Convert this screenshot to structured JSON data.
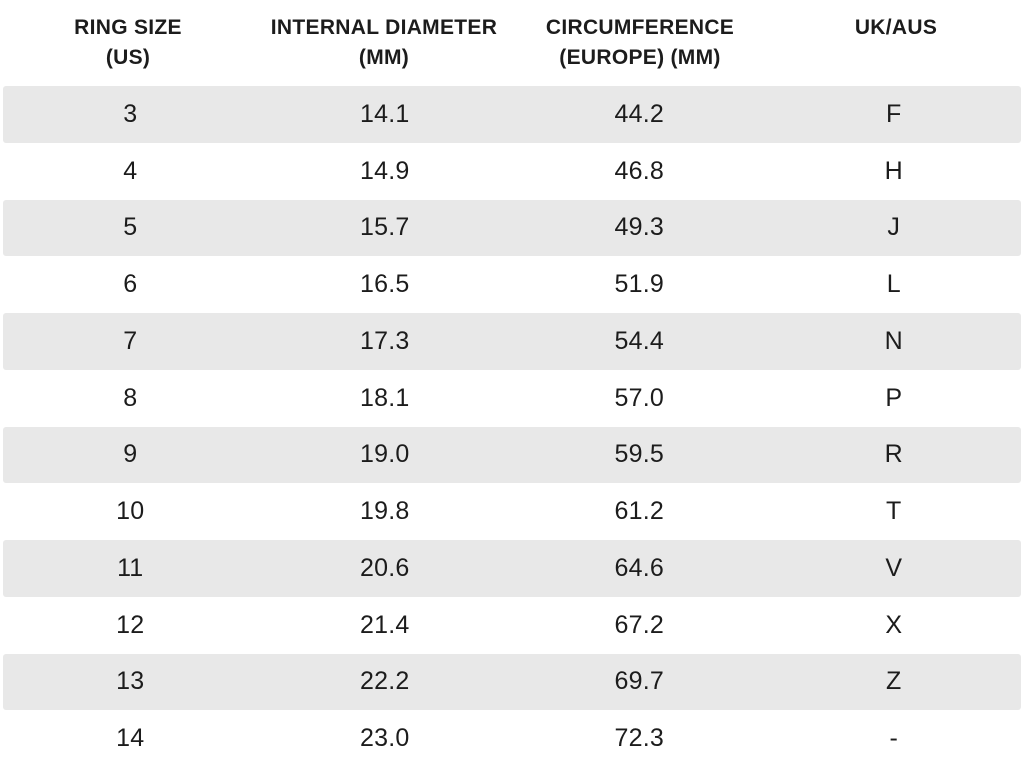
{
  "chart_data": {
    "type": "table",
    "columns": [
      {
        "label": "RING SIZE",
        "sub": "(US)"
      },
      {
        "label": "INTERNAL DIAMETER",
        "sub": "(MM)"
      },
      {
        "label": "CIRCUMFERENCE",
        "sub": "(EUROPE) (MM)"
      },
      {
        "label": "UK/AUS",
        "sub": ""
      }
    ],
    "rows": [
      [
        "3",
        "14.1",
        "44.2",
        "F"
      ],
      [
        "4",
        "14.9",
        "46.8",
        "H"
      ],
      [
        "5",
        "15.7",
        "49.3",
        "J"
      ],
      [
        "6",
        "16.5",
        "51.9",
        "L"
      ],
      [
        "7",
        "17.3",
        "54.4",
        "N"
      ],
      [
        "8",
        "18.1",
        "57.0",
        "P"
      ],
      [
        "9",
        "19.0",
        "59.5",
        "R"
      ],
      [
        "10",
        "19.8",
        "61.2",
        "T"
      ],
      [
        "11",
        "20.6",
        "64.6",
        "V"
      ],
      [
        "12",
        "21.4",
        "67.2",
        "X"
      ],
      [
        "13",
        "22.2",
        "69.7",
        "Z"
      ],
      [
        "14",
        "23.0",
        "72.3",
        "-"
      ]
    ],
    "layout": {
      "stripe_pattern": "odd-rows-shaded-starting-first-data-row",
      "alignment": "center"
    }
  },
  "colors": {
    "stripe": "#e8e8e8",
    "text": "#1c1c1c",
    "background": "#ffffff"
  }
}
